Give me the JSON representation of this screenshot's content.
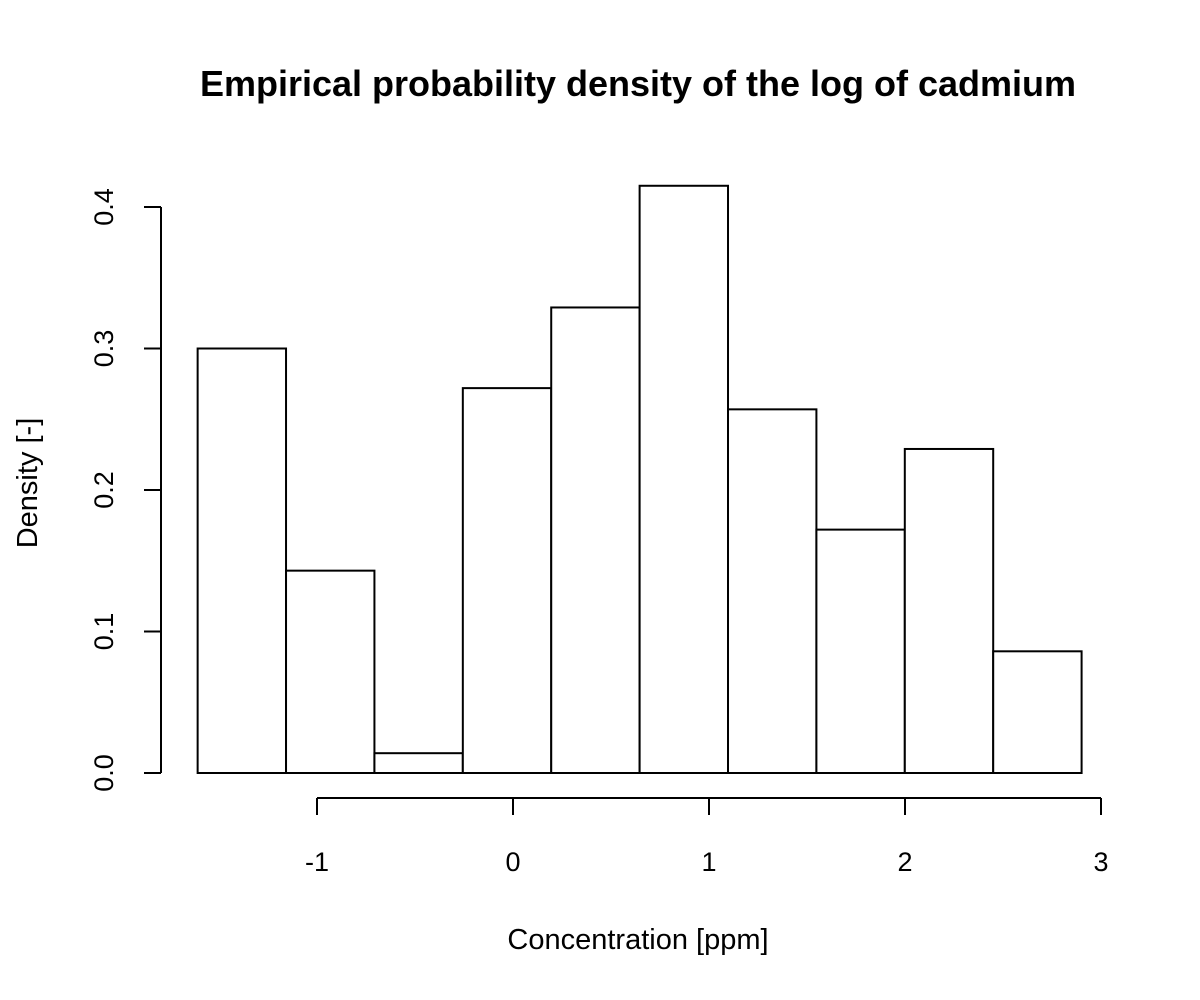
{
  "chart_data": {
    "type": "bar",
    "title": "Empirical probability density of the log of cadmium",
    "xlabel": "Concentration [ppm]",
    "ylabel": "Density [-]",
    "bin_edges": [
      -1.609,
      -1.158,
      -0.707,
      -0.256,
      0.195,
      0.646,
      1.097,
      1.548,
      1.999,
      2.45,
      2.901
    ],
    "values": [
      0.3,
      0.143,
      0.014,
      0.272,
      0.329,
      0.415,
      0.257,
      0.172,
      0.229,
      0.086
    ],
    "xticks": [
      -1,
      0,
      1,
      2,
      3
    ],
    "yticks": [
      0.0,
      0.1,
      0.2,
      0.3,
      0.4
    ],
    "xtick_labels": [
      "-1",
      "0",
      "1",
      "2",
      "3"
    ],
    "ytick_labels": [
      "0.0",
      "0.1",
      "0.2",
      "0.3",
      "0.4"
    ],
    "xlim": [
      -1.609,
      2.901
    ],
    "ylim": [
      0,
      0.415
    ],
    "grid": false,
    "legend": "none",
    "colors": {
      "bar_fill": "#ffffff",
      "bar_stroke": "#000000",
      "axis": "#000000"
    }
  }
}
